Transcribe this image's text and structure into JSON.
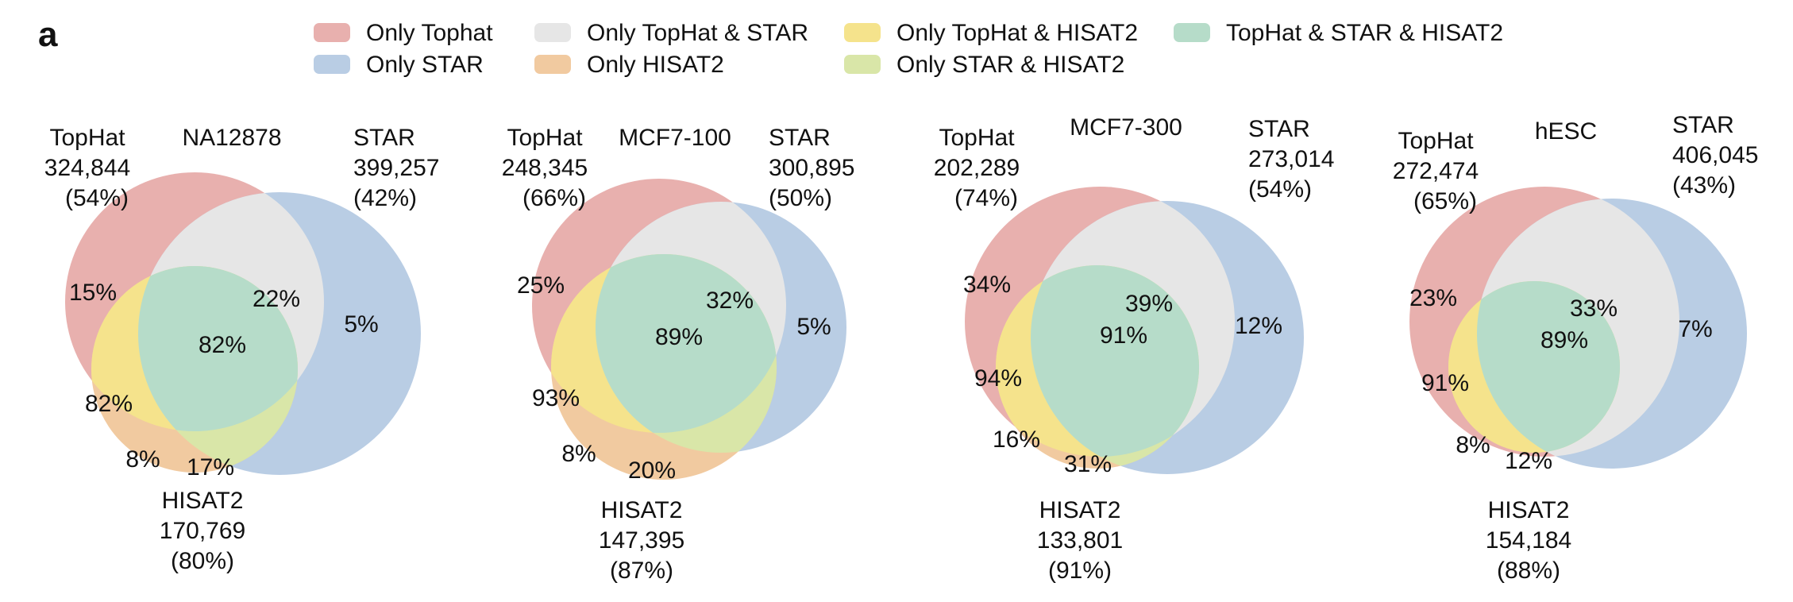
{
  "panel_label": "a",
  "legend": [
    {
      "label": "Only Tophat",
      "color": "#e8b0ae"
    },
    {
      "label": "Only STAR",
      "color": "#b9cde4"
    },
    {
      "label": "Only TopHat & STAR",
      "color": "#e6e6e6"
    },
    {
      "label": "Only HISAT2",
      "color": "#f1caa0"
    },
    {
      "label": "Only TopHat & HISAT2",
      "color": "#f5e38c"
    },
    {
      "label": "Only STAR & HISAT2",
      "color": "#d9e6a8"
    },
    {
      "label": "TopHat & STAR & HISAT2",
      "color": "#b6dcc9"
    }
  ],
  "colors": {
    "tophat": "#e8b0ae",
    "star": "#b9cde4",
    "tophat_star": "#e6e6e6",
    "hisat2": "#f1caa0",
    "tophat_hisat2": "#f5e38c",
    "star_hisat2": "#d9e6a8",
    "all_three": "#b6dcc9"
  },
  "chart_data": [
    {
      "type": "venn",
      "title": "NA12878",
      "sets": {
        "tophat": {
          "name": "TopHat",
          "count": "324,844",
          "pct": "(54%)"
        },
        "star": {
          "name": "STAR",
          "count": "399,257",
          "pct": "(42%)"
        },
        "hisat2": {
          "name": "HISAT2",
          "count": "170,769",
          "pct": "(80%)"
        }
      },
      "region_labels": {
        "tophat_only": "15%",
        "tophat_star": "22%",
        "star_only": "5%",
        "all_three": "82%",
        "tophat_hisat2": "82%",
        "hisat2_only": "8%",
        "star_hisat2": "17%"
      }
    },
    {
      "type": "venn",
      "title": "MCF7-100",
      "sets": {
        "tophat": {
          "name": "TopHat",
          "count": "248,345",
          "pct": "(66%)"
        },
        "star": {
          "name": "STAR",
          "count": "300,895",
          "pct": "(50%)"
        },
        "hisat2": {
          "name": "HISAT2",
          "count": "147,395",
          "pct": "(87%)"
        }
      },
      "region_labels": {
        "tophat_only": "25%",
        "tophat_star": "32%",
        "star_only": "5%",
        "all_three": "89%",
        "tophat_hisat2": "93%",
        "hisat2_only": "8%",
        "star_hisat2": "20%"
      }
    },
    {
      "type": "venn",
      "title": "MCF7-300",
      "sets": {
        "tophat": {
          "name": "TopHat",
          "count": "202,289",
          "pct": "(74%)"
        },
        "star": {
          "name": "STAR",
          "count": "273,014",
          "pct": "(54%)"
        },
        "hisat2": {
          "name": "HISAT2",
          "count": "133,801",
          "pct": "(91%)"
        }
      },
      "region_labels": {
        "tophat_only": "34%",
        "tophat_star": "39%",
        "star_only": "12%",
        "all_three": "91%",
        "tophat_hisat2": "94%",
        "hisat2_only": "16%",
        "star_hisat2": "31%"
      }
    },
    {
      "type": "venn",
      "title": "hESC",
      "sets": {
        "tophat": {
          "name": "TopHat",
          "count": "272,474",
          "pct": "(65%)"
        },
        "star": {
          "name": "STAR",
          "count": "406,045",
          "pct": "(43%)"
        },
        "hisat2": {
          "name": "HISAT2",
          "count": "154,184",
          "pct": "(88%)"
        }
      },
      "region_labels": {
        "tophat_only": "23%",
        "tophat_star": "33%",
        "star_only": "7%",
        "all_three": "89%",
        "tophat_hisat2": "91%",
        "hisat2_only": "8%",
        "star_hisat2": "12%"
      }
    }
  ]
}
